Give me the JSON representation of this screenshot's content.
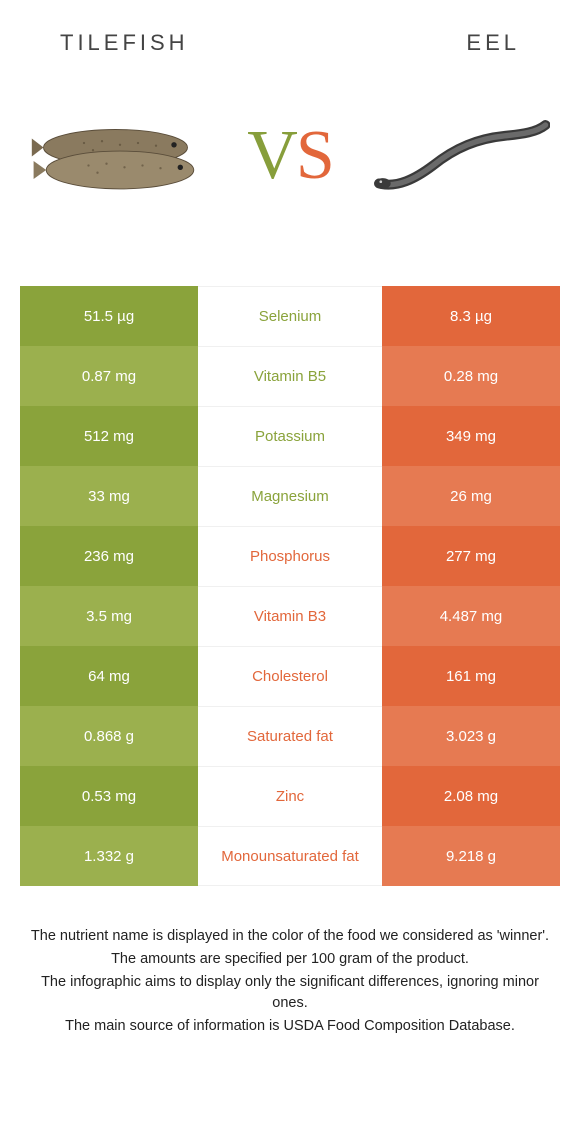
{
  "colors": {
    "left": "#8aa33b",
    "left_alt": "#9bb04e",
    "right": "#e2673b",
    "right_alt": "#e67a52",
    "mid_left_text": "#8aa33b",
    "mid_right_text": "#e2673b",
    "bg": "#ffffff"
  },
  "header": {
    "left_title": "TILEFISH",
    "right_title": "EEL"
  },
  "vs": {
    "v": "V",
    "s": "S"
  },
  "rows": [
    {
      "left": "51.5 µg",
      "label": "Selenium",
      "right": "8.3 µg",
      "winner": "left"
    },
    {
      "left": "0.87 mg",
      "label": "Vitamin B5",
      "right": "0.28 mg",
      "winner": "left"
    },
    {
      "left": "512 mg",
      "label": "Potassium",
      "right": "349 mg",
      "winner": "left"
    },
    {
      "left": "33 mg",
      "label": "Magnesium",
      "right": "26 mg",
      "winner": "left"
    },
    {
      "left": "236 mg",
      "label": "Phosphorus",
      "right": "277 mg",
      "winner": "right"
    },
    {
      "left": "3.5 mg",
      "label": "Vitamin B3",
      "right": "4.487 mg",
      "winner": "right"
    },
    {
      "left": "64 mg",
      "label": "Cholesterol",
      "right": "161 mg",
      "winner": "right"
    },
    {
      "left": "0.868 g",
      "label": "Saturated fat",
      "right": "3.023 g",
      "winner": "right"
    },
    {
      "left": "0.53 mg",
      "label": "Zinc",
      "right": "2.08 mg",
      "winner": "right"
    },
    {
      "left": "1.332 g",
      "label": "Monounsaturated fat",
      "right": "9.218 g",
      "winner": "right"
    }
  ],
  "footnote": {
    "l1": "The nutrient name is displayed in the color of the food we considered as 'winner'.",
    "l2": "The amounts are specified per 100 gram of the product.",
    "l3": "The infographic aims to display only the significant differences, ignoring minor ones.",
    "l4": "The main source of information is USDA Food Composition Database."
  }
}
